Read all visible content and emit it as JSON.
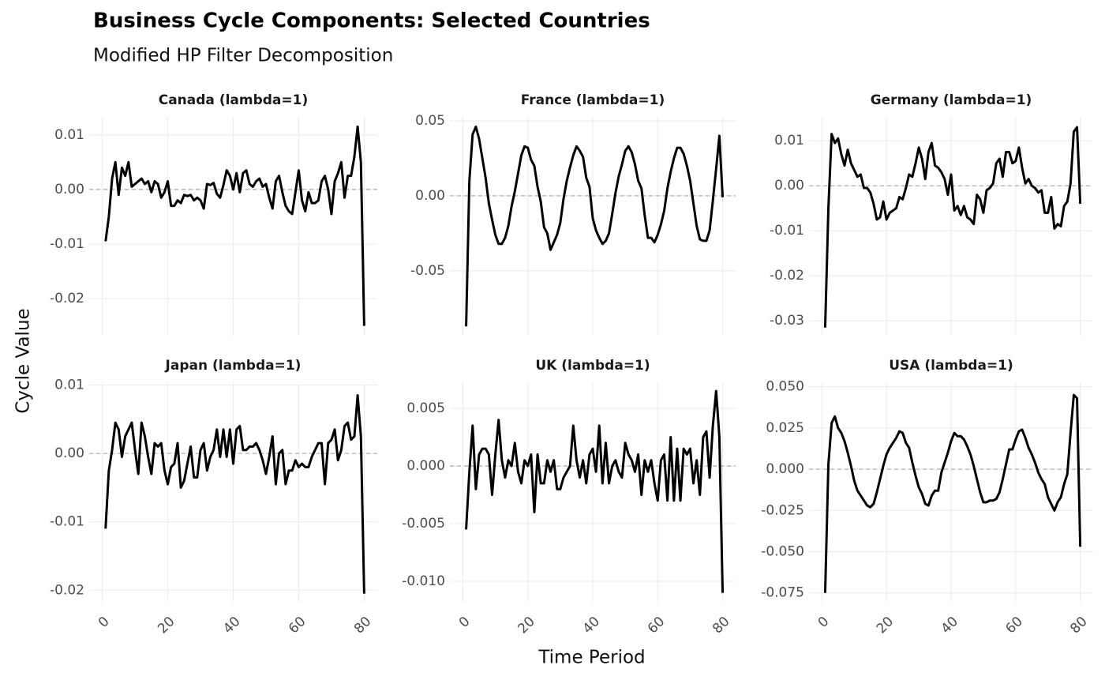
{
  "title": "Business Cycle Components: Selected Countries",
  "subtitle": "Modified HP Filter Decomposition",
  "x_label": "Time Period",
  "y_label": "Cycle Value",
  "chart_data": [
    {
      "type": "line",
      "title": "Canada (lambda=1)",
      "color": "#000000",
      "hline": 0,
      "grid": true,
      "x": [
        1,
        2,
        3,
        4,
        5,
        6,
        7,
        8,
        9,
        10,
        11,
        12,
        13,
        14,
        15,
        16,
        17,
        18,
        19,
        20,
        21,
        22,
        23,
        24,
        25,
        26,
        27,
        28,
        29,
        30,
        31,
        32,
        33,
        34,
        35,
        36,
        37,
        38,
        39,
        40,
        41,
        42,
        43,
        44,
        45,
        46,
        47,
        48,
        49,
        50,
        51,
        52,
        53,
        54,
        55,
        56,
        57,
        58,
        59,
        60,
        61,
        62,
        63,
        64,
        65,
        66,
        67,
        68,
        69,
        70,
        71,
        72,
        73,
        74,
        75,
        76,
        77,
        78,
        79,
        80
      ],
      "values": [
        -0.0095,
        -0.005,
        0.002,
        0.005,
        -0.001,
        0.004,
        0.0025,
        0.005,
        0.0005,
        0.001,
        0.0015,
        0.002,
        0.001,
        0.0015,
        -0.0005,
        0.0015,
        0.001,
        -0.0015,
        -0.0005,
        0.0015,
        -0.003,
        -0.003,
        -0.002,
        -0.0025,
        -0.001,
        -0.0012,
        -0.001,
        -0.002,
        -0.0015,
        -0.002,
        -0.0035,
        0.001,
        0.0008,
        0.0012,
        -0.0008,
        -0.0015,
        0.0008,
        0.0035,
        0.0025,
        0,
        0.003,
        -0.0005,
        0.003,
        0.0035,
        0.001,
        0.0005,
        0.0015,
        0.002,
        0.0005,
        0.001,
        -0.0015,
        -0.0035,
        0.0015,
        0.0025,
        -0.0005,
        -0.003,
        -0.004,
        -0.0045,
        -0.0005,
        0.0035,
        -0.002,
        -0.004,
        -0.0005,
        -0.0025,
        -0.0025,
        -0.002,
        0.0015,
        0.0025,
        0,
        -0.0045,
        0.0015,
        0.003,
        0.005,
        -0.0015,
        0.0025,
        0.0025,
        0.006,
        0.0115,
        0.005,
        -0.025
      ],
      "xlim": [
        -4,
        84
      ],
      "xticks": [
        0,
        20,
        40,
        60,
        80
      ],
      "ylim": [
        -0.0268,
        0.0133
      ],
      "yticks": [
        0.01,
        {
          "value": 0,
          "label": "0.00"
        },
        -0.01,
        -0.02
      ]
    },
    {
      "type": "line",
      "title": "France (lambda=1)",
      "color": "#000000",
      "hline": 0,
      "grid": true,
      "x": [
        1,
        2,
        3,
        4,
        5,
        6,
        7,
        8,
        9,
        10,
        11,
        12,
        13,
        14,
        15,
        16,
        17,
        18,
        19,
        20,
        21,
        22,
        23,
        24,
        25,
        26,
        27,
        28,
        29,
        30,
        31,
        32,
        33,
        34,
        35,
        36,
        37,
        38,
        39,
        40,
        41,
        42,
        43,
        44,
        45,
        46,
        47,
        48,
        49,
        50,
        51,
        52,
        53,
        54,
        55,
        56,
        57,
        58,
        59,
        60,
        61,
        62,
        63,
        64,
        65,
        66,
        67,
        68,
        69,
        70,
        71,
        72,
        73,
        74,
        75,
        76,
        77,
        78,
        79,
        80
      ],
      "values": [
        -0.087,
        0.01,
        0.041,
        0.046,
        0.038,
        0.025,
        0.012,
        -0.005,
        -0.016,
        -0.026,
        -0.032,
        -0.032,
        -0.028,
        -0.02,
        -0.007,
        0.003,
        0.015,
        0.027,
        0.033,
        0.032,
        0.024,
        0.02,
        0.006,
        -0.004,
        -0.021,
        -0.025,
        -0.036,
        -0.031,
        -0.026,
        -0.018,
        -0.002,
        0.01,
        0.019,
        0.027,
        0.033,
        0.03,
        0.026,
        0.012,
        0.006,
        -0.015,
        -0.023,
        -0.028,
        -0.032,
        -0.03,
        -0.025,
        -0.012,
        0.002,
        0.013,
        0.021,
        0.03,
        0.033,
        0.029,
        0.021,
        0.01,
        0.005,
        -0.013,
        -0.028,
        -0.028,
        -0.031,
        -0.026,
        -0.019,
        -0.01,
        0.005,
        0.016,
        0.025,
        0.032,
        0.032,
        0.028,
        0.02,
        0.01,
        -0.005,
        -0.02,
        -0.029,
        -0.03,
        -0.03,
        -0.023,
        -0.003,
        0.018,
        0.04,
        -0.001
      ],
      "xlim": [
        -4,
        84
      ],
      "xticks": [
        0,
        20,
        40,
        60,
        80
      ],
      "ylim": [
        -0.0932,
        0.0526
      ],
      "yticks": [
        0.05,
        {
          "value": 0,
          "label": "0.00"
        },
        -0.05
      ]
    },
    {
      "type": "line",
      "title": "Germany (lambda=1)",
      "color": "#000000",
      "hline": 0,
      "grid": true,
      "x": [
        1,
        2,
        3,
        4,
        5,
        6,
        7,
        8,
        9,
        10,
        11,
        12,
        13,
        14,
        15,
        16,
        17,
        18,
        19,
        20,
        21,
        22,
        23,
        24,
        25,
        26,
        27,
        28,
        29,
        30,
        31,
        32,
        33,
        34,
        35,
        36,
        37,
        38,
        39,
        40,
        41,
        42,
        43,
        44,
        45,
        46,
        47,
        48,
        49,
        50,
        51,
        52,
        53,
        54,
        55,
        56,
        57,
        58,
        59,
        60,
        61,
        62,
        63,
        64,
        65,
        66,
        67,
        68,
        69,
        70,
        71,
        72,
        73,
        74,
        75,
        76,
        77,
        78,
        79,
        80
      ],
      "values": [
        -0.0315,
        -0.005,
        0.0115,
        0.0095,
        0.0105,
        0.007,
        0.0045,
        0.008,
        0.005,
        0.0035,
        0.002,
        0.0025,
        -0.0005,
        -0.0005,
        -0.0015,
        -0.004,
        -0.0075,
        -0.007,
        -0.0035,
        -0.0075,
        -0.006,
        -0.0055,
        -0.005,
        -0.0025,
        -0.003,
        -0.0005,
        0.0025,
        0.002,
        0.005,
        0.0085,
        0.006,
        0.0015,
        0.0075,
        0.0095,
        0.0045,
        0.004,
        0.003,
        0.0015,
        -0.002,
        0.0025,
        -0.0055,
        -0.0045,
        -0.0065,
        -0.0045,
        -0.007,
        -0.0075,
        -0.0085,
        -0.002,
        -0.003,
        -0.006,
        -0.001,
        -0.0005,
        0.0005,
        0.005,
        0.006,
        0.002,
        0.0075,
        0.0075,
        0.005,
        0.0055,
        0.0085,
        0.004,
        0.0005,
        0.0015,
        0,
        -0.0005,
        -0.0015,
        -0.001,
        -0.006,
        -0.006,
        -0.0025,
        -0.0095,
        -0.0085,
        -0.009,
        -0.0045,
        -0.0035,
        0.0005,
        0.012,
        0.013,
        -0.004
      ],
      "xlim": [
        -4,
        84
      ],
      "xticks": [
        0,
        20,
        40,
        60,
        80
      ],
      "ylim": [
        -0.0333,
        0.0153
      ],
      "yticks": [
        0.01,
        {
          "value": 0,
          "label": "0.00"
        },
        -0.01,
        -0.02,
        -0.03
      ]
    },
    {
      "type": "line",
      "title": "Japan (lambda=1)",
      "color": "#000000",
      "hline": 0,
      "grid": true,
      "x": [
        1,
        2,
        3,
        4,
        5,
        6,
        7,
        8,
        9,
        10,
        11,
        12,
        13,
        14,
        15,
        16,
        17,
        18,
        19,
        20,
        21,
        22,
        23,
        24,
        25,
        26,
        27,
        28,
        29,
        30,
        31,
        32,
        33,
        34,
        35,
        36,
        37,
        38,
        39,
        40,
        41,
        42,
        43,
        44,
        45,
        46,
        47,
        48,
        49,
        50,
        51,
        52,
        53,
        54,
        55,
        56,
        57,
        58,
        59,
        60,
        61,
        62,
        63,
        64,
        65,
        66,
        67,
        68,
        69,
        70,
        71,
        72,
        73,
        74,
        75,
        76,
        77,
        78,
        79,
        80
      ],
      "values": [
        -0.011,
        -0.0025,
        0.0005,
        0.0045,
        0.0035,
        -0.0005,
        0.0025,
        0.0035,
        0.0045,
        0.0005,
        -0.003,
        0.0045,
        0.0025,
        -0.0005,
        -0.003,
        0.0015,
        0.001,
        0.0015,
        -0.0025,
        -0.0045,
        -0.002,
        -0.0015,
        0.0015,
        -0.005,
        -0.004,
        -0.0015,
        0.001,
        -0.0035,
        -0.0035,
        0.0005,
        0.0015,
        -0.0025,
        -0.0005,
        0.0005,
        0.0035,
        -0.0005,
        0.0035,
        -0.0005,
        0.0035,
        -0.0015,
        0.0035,
        0.004,
        0.0005,
        0.0005,
        0.001,
        0.001,
        0.0015,
        0.0005,
        -0.001,
        -0.003,
        -0.0005,
        0.0025,
        -0.0045,
        0,
        0.0005,
        -0.0045,
        -0.0025,
        -0.0025,
        -0.001,
        -0.002,
        -0.0015,
        -0.002,
        -0.002,
        -0.0005,
        0.0005,
        0.0015,
        0.0015,
        -0.0045,
        0.0015,
        0.002,
        0.0035,
        -0.001,
        0.0005,
        0.004,
        0.0045,
        0.002,
        0.0025,
        0.0085,
        0.0025,
        -0.0205
      ],
      "xlim": [
        -4,
        84
      ],
      "xticks": [
        0,
        20,
        40,
        60,
        80
      ],
      "ylim": [
        -0.0217,
        0.0104
      ],
      "yticks": [
        0.01,
        {
          "value": 0,
          "label": "0.00"
        },
        -0.01,
        -0.02
      ]
    },
    {
      "type": "line",
      "title": "UK (lambda=1)",
      "color": "#000000",
      "hline": 0,
      "grid": true,
      "x": [
        1,
        2,
        3,
        4,
        5,
        6,
        7,
        8,
        9,
        10,
        11,
        12,
        13,
        14,
        15,
        16,
        17,
        18,
        19,
        20,
        21,
        22,
        23,
        24,
        25,
        26,
        27,
        28,
        29,
        30,
        31,
        32,
        33,
        34,
        35,
        36,
        37,
        38,
        39,
        40,
        41,
        42,
        43,
        44,
        45,
        46,
        47,
        48,
        49,
        50,
        51,
        52,
        53,
        54,
        55,
        56,
        57,
        58,
        59,
        60,
        61,
        62,
        63,
        64,
        65,
        66,
        67,
        68,
        69,
        70,
        71,
        72,
        73,
        74,
        75,
        76,
        77,
        78,
        79,
        80
      ],
      "values": [
        -0.0055,
        -0.0005,
        0.0035,
        -0.002,
        0.001,
        0.0015,
        0.0015,
        0.001,
        -0.0025,
        0.001,
        0.004,
        0.0005,
        -0.001,
        0.0005,
        0,
        0.002,
        -0.0005,
        -0.0015,
        0.0005,
        0,
        0.001,
        -0.004,
        0.001,
        -0.0015,
        -0.0015,
        0.0005,
        -0.0005,
        0.0005,
        -0.002,
        -0.002,
        -0.001,
        -0.0005,
        0,
        0.0035,
        0.0005,
        -0.001,
        0.0005,
        -0.0015,
        0.001,
        0.0015,
        -0.0005,
        0.0035,
        -0.0015,
        0.002,
        -0.0015,
        0,
        0.0005,
        -0.0005,
        -0.001,
        0.002,
        0.001,
        0.0005,
        -0.0005,
        0.001,
        -0.0025,
        0.0005,
        -0.0005,
        0.0005,
        -0.0015,
        -0.003,
        0.0005,
        0.001,
        -0.003,
        0.0025,
        -0.003,
        0.0015,
        -0.003,
        0.0015,
        0.001,
        0.0015,
        -0.0015,
        0.0005,
        -0.0025,
        0.0025,
        0.003,
        -0.001,
        0.0035,
        0.0065,
        0.0025,
        -0.011
      ],
      "xlim": [
        -4,
        84
      ],
      "xticks": [
        0,
        20,
        40,
        60,
        80
      ],
      "ylim": [
        -0.01178,
        0.00726
      ],
      "yticks": [
        0.005,
        {
          "value": 0,
          "label": "0.000"
        },
        -0.005,
        {
          "value": -0.01,
          "label": "-0.010"
        }
      ]
    },
    {
      "type": "line",
      "title": "USA (lambda=1)",
      "color": "#000000",
      "hline": 0,
      "grid": true,
      "x": [
        1,
        2,
        3,
        4,
        5,
        6,
        7,
        8,
        9,
        10,
        11,
        12,
        13,
        14,
        15,
        16,
        17,
        18,
        19,
        20,
        21,
        22,
        23,
        24,
        25,
        26,
        27,
        28,
        29,
        30,
        31,
        32,
        33,
        34,
        35,
        36,
        37,
        38,
        39,
        40,
        41,
        42,
        43,
        44,
        45,
        46,
        47,
        48,
        49,
        50,
        51,
        52,
        53,
        54,
        55,
        56,
        57,
        58,
        59,
        60,
        61,
        62,
        63,
        64,
        65,
        66,
        67,
        68,
        69,
        70,
        71,
        72,
        73,
        74,
        75,
        76,
        77,
        78,
        79,
        80
      ],
      "values": [
        -0.075,
        0.003,
        0.028,
        0.032,
        0.025,
        0.022,
        0.017,
        0.01,
        0.002,
        -0.007,
        -0.013,
        -0.016,
        -0.019,
        -0.022,
        -0.023,
        -0.021,
        -0.014,
        -0.006,
        0.002,
        0.009,
        0.013,
        0.016,
        0.019,
        0.023,
        0.022,
        0.016,
        0.013,
        0.004,
        -0.004,
        -0.011,
        -0.015,
        -0.021,
        -0.022,
        -0.016,
        -0.013,
        -0.013,
        -0.002,
        0.004,
        0.01,
        0.017,
        0.022,
        0.02,
        0.02,
        0.018,
        0.014,
        0.009,
        0.002,
        -0.006,
        -0.014,
        -0.02,
        -0.02,
        -0.019,
        -0.019,
        -0.018,
        -0.014,
        -0.006,
        0.003,
        0.012,
        0.012,
        0.018,
        0.023,
        0.024,
        0.019,
        0.013,
        0.009,
        0.004,
        -0.002,
        -0.006,
        -0.009,
        -0.017,
        -0.021,
        -0.025,
        -0.02,
        -0.017,
        -0.009,
        -0.003,
        0.022,
        0.045,
        0.043,
        -0.047
      ],
      "xlim": [
        -4,
        84
      ],
      "xticks": [
        0,
        20,
        40,
        60,
        80
      ],
      "ylim": [
        -0.0804,
        0.0527
      ],
      "yticks": [
        {
          "value": 0.05,
          "label": "0.050"
        },
        0.025,
        {
          "value": 0,
          "label": "0.000"
        },
        -0.025,
        {
          "value": -0.05,
          "label": "-0.050"
        },
        -0.075
      ]
    }
  ]
}
